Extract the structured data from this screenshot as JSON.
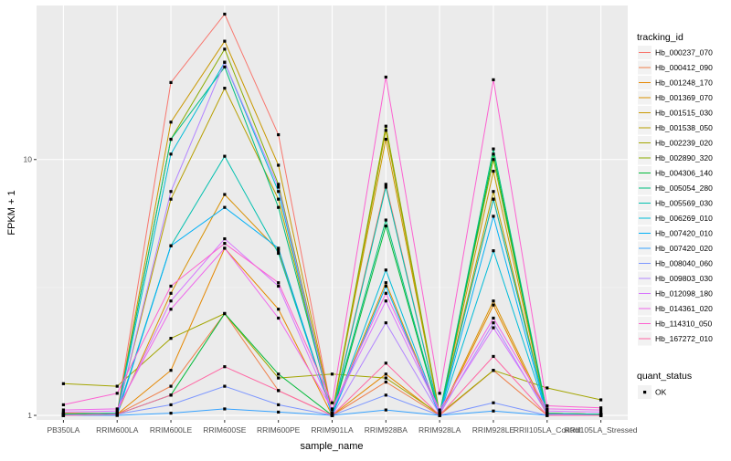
{
  "chart_data": {
    "type": "line",
    "xlabel": "sample_name",
    "ylabel": "FPKM + 1",
    "y_scale": "log10",
    "ylim": [
      0.96,
      40
    ],
    "y_ticks": [
      1,
      10
    ],
    "y_tick_labels": [
      "1",
      "10"
    ],
    "grid": true,
    "categories": [
      "PB350LA",
      "RRIM600LA",
      "RRIM600LE",
      "RRIM600SE",
      "RRIM600PE",
      "RRIM901LA",
      "RRIM928BA",
      "RRIM928LA",
      "RRIM928LE",
      "RRII105LA_Control",
      "RRII105LA_Stressed"
    ],
    "legend": {
      "title": "tracking_id",
      "position": "right"
    },
    "shape_legend": {
      "title": "quant_status",
      "items": [
        "OK"
      ]
    },
    "series": [
      {
        "name": "Hb_000237_070",
        "color": "#F8766D",
        "values": [
          1.01,
          1.02,
          20.0,
          37.0,
          12.5,
          1.02,
          8.0,
          1.01,
          7.0,
          1.02,
          1.01
        ]
      },
      {
        "name": "Hb_000412_090",
        "color": "#EF7F49",
        "values": [
          1.0,
          1.01,
          1.3,
          2.5,
          1.25,
          1.0,
          1.35,
          1.0,
          1.5,
          1.0,
          1.0
        ]
      },
      {
        "name": "Hb_001248_170",
        "color": "#E58700",
        "values": [
          1.0,
          1.01,
          1.5,
          4.5,
          2.6,
          1.0,
          1.45,
          1.0,
          2.7,
          1.0,
          1.0
        ]
      },
      {
        "name": "Hb_001369_070",
        "color": "#D89000",
        "values": [
          1.02,
          1.02,
          3.0,
          7.3,
          4.4,
          1.02,
          3.3,
          1.01,
          2.8,
          1.02,
          1.01
        ]
      },
      {
        "name": "Hb_001515_030",
        "color": "#C99800",
        "values": [
          1.01,
          1.02,
          14.0,
          29.0,
          9.5,
          1.02,
          12.0,
          1.01,
          9.0,
          1.02,
          1.01
        ]
      },
      {
        "name": "Hb_001538_050",
        "color": "#B79F00",
        "values": [
          1.01,
          1.02,
          7.0,
          19.0,
          7.0,
          1.01,
          13.0,
          1.01,
          7.5,
          1.01,
          1.01
        ]
      },
      {
        "name": "Hb_002239_020",
        "color": "#A3A500",
        "values": [
          1.33,
          1.3,
          2.0,
          2.5,
          1.4,
          1.45,
          1.4,
          1.01,
          1.5,
          1.28,
          1.15
        ]
      },
      {
        "name": "Hb_002890_320",
        "color": "#8AAB00",
        "values": [
          1.01,
          1.02,
          12.0,
          27.0,
          8.0,
          1.02,
          13.5,
          1.02,
          10.0,
          1.02,
          1.01
        ]
      },
      {
        "name": "Hb_004306_140",
        "color": "#00BA38",
        "values": [
          1.0,
          1.01,
          1.2,
          2.5,
          1.45,
          1.0,
          5.5,
          1.0,
          10.5,
          1.01,
          1.0
        ]
      },
      {
        "name": "Hb_005054_280",
        "color": "#00BF7D",
        "values": [
          1.01,
          1.02,
          12.0,
          23.0,
          6.5,
          1.02,
          5.8,
          1.01,
          11.0,
          1.02,
          1.01
        ]
      },
      {
        "name": "Hb_005569_030",
        "color": "#00C0AF",
        "values": [
          1.01,
          1.02,
          4.6,
          10.3,
          4.3,
          1.01,
          7.8,
          1.01,
          7.0,
          1.01,
          1.01
        ]
      },
      {
        "name": "Hb_006269_010",
        "color": "#00BCD8",
        "values": [
          1.0,
          1.01,
          10.5,
          24.0,
          7.5,
          1.0,
          3.7,
          1.0,
          4.4,
          1.01,
          1.0
        ]
      },
      {
        "name": "Hb_007420_010",
        "color": "#00B0F6",
        "values": [
          1.0,
          1.0,
          4.6,
          6.5,
          4.5,
          1.0,
          3.2,
          1.0,
          6.0,
          1.0,
          1.0
        ]
      },
      {
        "name": "Hb_007420_020",
        "color": "#35A2FF",
        "values": [
          1.0,
          1.0,
          1.02,
          1.06,
          1.03,
          1.0,
          1.05,
          1.0,
          1.04,
          1.0,
          1.0
        ]
      },
      {
        "name": "Hb_008040_060",
        "color": "#7C96FF",
        "values": [
          1.0,
          1.01,
          1.1,
          1.3,
          1.1,
          1.0,
          1.2,
          1.0,
          1.12,
          1.0,
          1.0
        ]
      },
      {
        "name": "Hb_009803_030",
        "color": "#B385FF",
        "values": [
          1.0,
          1.01,
          7.5,
          24.0,
          7.8,
          1.0,
          2.3,
          1.01,
          2.3,
          1.01,
          1.0
        ]
      },
      {
        "name": "Hb_012098_180",
        "color": "#D874FD",
        "values": [
          1.03,
          1.04,
          2.8,
          4.9,
          3.2,
          1.05,
          2.8,
          1.03,
          2.2,
          1.04,
          1.03
        ]
      },
      {
        "name": "Hb_014361_020",
        "color": "#EF67EB",
        "values": [
          1.05,
          1.06,
          2.6,
          4.5,
          2.4,
          1.06,
          3.0,
          1.05,
          2.4,
          1.06,
          1.05
        ]
      },
      {
        "name": "Hb_114310_050",
        "color": "#FD61D1",
        "values": [
          1.1,
          1.22,
          3.2,
          4.7,
          3.3,
          1.12,
          21.0,
          1.22,
          20.5,
          1.09,
          1.07
        ]
      },
      {
        "name": "Hb_167272_010",
        "color": "#FF67A4",
        "values": [
          1.0,
          1.01,
          1.2,
          1.55,
          1.25,
          1.0,
          1.6,
          1.0,
          1.7,
          1.0,
          1.0
        ]
      }
    ]
  }
}
